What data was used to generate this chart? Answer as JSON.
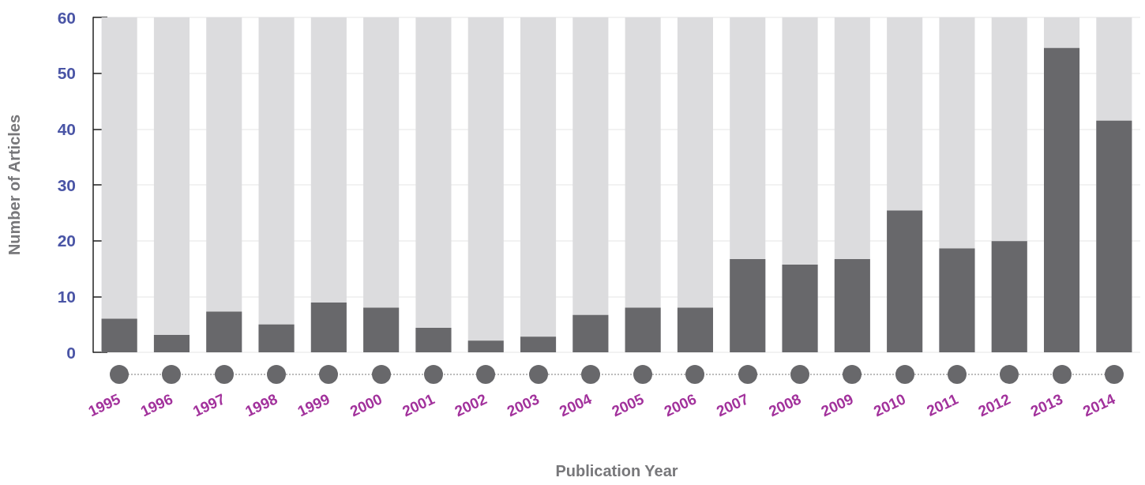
{
  "chart_data": {
    "type": "bar",
    "xlabel": "Publication Year",
    "ylabel": "Number of Articles",
    "categories": [
      "1995",
      "1996",
      "1997",
      "1998",
      "1999",
      "2000",
      "2001",
      "2002",
      "2003",
      "2004",
      "2005",
      "2006",
      "2007",
      "2008",
      "2009",
      "2010",
      "2011",
      "2012",
      "2013",
      "2014"
    ],
    "values": [
      6,
      3.1,
      7.3,
      5,
      8.9,
      8,
      4.4,
      2.1,
      2.8,
      6.7,
      8,
      8,
      16.7,
      15.7,
      16.7,
      25.4,
      18.6,
      19.9,
      54.5,
      41.5
    ],
    "color": "#68686b",
    "ylim": [
      0,
      60
    ],
    "yticks": [
      0,
      10,
      20,
      30,
      40,
      50,
      60
    ],
    "grid": "y"
  }
}
